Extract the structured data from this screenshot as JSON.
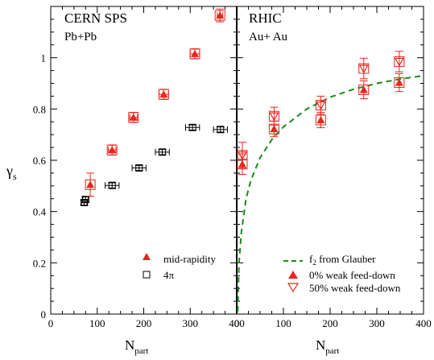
{
  "y_axis_label": {
    "main": "γ",
    "sub": "s"
  },
  "y_ticks": [
    "0",
    "0.2",
    "0.4",
    "0.6",
    "0.8",
    "1"
  ],
  "colors": {
    "red": "#e8261c",
    "black": "#000000",
    "green": "#1c8a1c"
  },
  "chart_data": [
    {
      "type": "scatter",
      "title": "CERN SPS",
      "subtitle": "Pb+Pb",
      "xlabel": {
        "main": "N",
        "sub": "part"
      },
      "x_ticks": [
        "0",
        "100",
        "200",
        "300",
        "400"
      ],
      "xlim": [
        0,
        400
      ],
      "ylim": [
        0,
        1.2
      ],
      "legend": {
        "position": "bottom-right",
        "entries": [
          "mid-rapidity",
          "4π"
        ]
      },
      "series": [
        {
          "name": "mid-rapidity",
          "marker": "filled-triangle",
          "color": "#e8261c",
          "points": [
            {
              "x": 85,
              "y": 0.505,
              "yerr": 0.045,
              "xerr": 0
            },
            {
              "x": 132,
              "y": 0.64,
              "yerr": 0.02,
              "xerr": 8
            },
            {
              "x": 178,
              "y": 0.767,
              "yerr": 0.02,
              "xerr": 8
            },
            {
              "x": 243,
              "y": 0.857,
              "yerr": 0.02,
              "xerr": 10
            },
            {
              "x": 310,
              "y": 1.015,
              "yerr": 0.02,
              "xerr": 10
            },
            {
              "x": 364,
              "y": 1.165,
              "yerr": 0.025,
              "xerr": 6
            }
          ]
        },
        {
          "name": "4π",
          "marker": "open-square",
          "color": "#000000",
          "points": [
            {
              "x": 72,
              "y": 0.435,
              "yerr": 0.01,
              "xerr": 6
            },
            {
              "x": 75,
              "y": 0.447,
              "yerr": 0.01,
              "xerr": 6
            },
            {
              "x": 132,
              "y": 0.502,
              "yerr": 0.01,
              "xerr": 15
            },
            {
              "x": 190,
              "y": 0.57,
              "yerr": 0.01,
              "xerr": 15
            },
            {
              "x": 240,
              "y": 0.632,
              "yerr": 0.01,
              "xerr": 15
            },
            {
              "x": 305,
              "y": 0.728,
              "yerr": 0.01,
              "xerr": 15
            },
            {
              "x": 365,
              "y": 0.72,
              "yerr": 0.01,
              "xerr": 15
            }
          ]
        }
      ]
    },
    {
      "type": "scatter",
      "title": "RHIC",
      "subtitle": "Au+ Au",
      "xlabel": {
        "main": "N",
        "sub": "part"
      },
      "x_ticks": [
        "0",
        "100",
        "200",
        "300",
        "400"
      ],
      "xlim": [
        0,
        400
      ],
      "ylim": [
        0,
        1.2
      ],
      "legend": {
        "position": "bottom-right",
        "entries": [
          {
            "main": "f",
            "sub": "2",
            "rest": " from Glauber"
          },
          {
            "main": "0% weak feed-down"
          },
          {
            "main": "50% weak feed-down"
          }
        ]
      },
      "series": [
        {
          "name": "0% weak feed-down",
          "marker": "filled-triangle",
          "color": "#e8261c",
          "points": [
            {
              "x": 12,
              "y": 0.585,
              "yerr": 0.04,
              "xerr": 0
            },
            {
              "x": 80,
              "y": 0.722,
              "yerr": 0.03,
              "xerr": 0
            },
            {
              "x": 180,
              "y": 0.757,
              "yerr": 0.03,
              "xerr": 0
            },
            {
              "x": 272,
              "y": 0.875,
              "yerr": 0.035,
              "xerr": 0
            },
            {
              "x": 348,
              "y": 0.903,
              "yerr": 0.035,
              "xerr": 0
            }
          ]
        },
        {
          "name": "50% weak feed-down",
          "marker": "open-inverted-triangle",
          "color": "#e8261c",
          "points": [
            {
              "x": 12,
              "y": 0.62,
              "yerr": 0.05,
              "xerr": 0
            },
            {
              "x": 80,
              "y": 0.772,
              "yerr": 0.035,
              "xerr": 0
            },
            {
              "x": 180,
              "y": 0.815,
              "yerr": 0.035,
              "xerr": 0
            },
            {
              "x": 272,
              "y": 0.958,
              "yerr": 0.04,
              "xerr": 0
            },
            {
              "x": 348,
              "y": 0.985,
              "yerr": 0.04,
              "xerr": 0
            }
          ]
        },
        {
          "name": "f2 from Glauber",
          "line": "dashed",
          "color": "#1c8a1c",
          "x": [
            2,
            5,
            10,
            20,
            30,
            50,
            75,
            100,
            150,
            200,
            250,
            300,
            350,
            400
          ],
          "y": [
            0.01,
            0.2,
            0.32,
            0.45,
            0.52,
            0.61,
            0.68,
            0.73,
            0.8,
            0.846,
            0.877,
            0.9,
            0.917,
            0.93
          ]
        }
      ]
    }
  ]
}
